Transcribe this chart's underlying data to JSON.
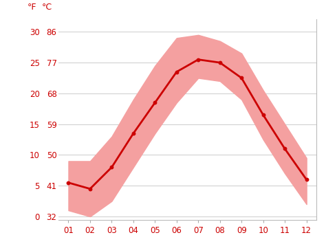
{
  "months": [
    1,
    2,
    3,
    4,
    5,
    6,
    7,
    8,
    9,
    10,
    11,
    12
  ],
  "month_labels": [
    "01",
    "02",
    "03",
    "04",
    "05",
    "06",
    "07",
    "08",
    "09",
    "10",
    "11",
    "12"
  ],
  "avg_temp_c": [
    5.5,
    4.5,
    8.0,
    13.5,
    18.5,
    23.5,
    25.5,
    25.0,
    22.5,
    16.5,
    11.0,
    6.0
  ],
  "temp_high_c": [
    9.0,
    9.0,
    13.0,
    19.0,
    24.5,
    29.0,
    29.5,
    28.5,
    26.5,
    20.5,
    15.0,
    9.5
  ],
  "temp_low_c": [
    1.0,
    0.0,
    2.5,
    8.0,
    13.5,
    18.5,
    22.5,
    22.0,
    19.0,
    12.5,
    7.0,
    2.0
  ],
  "yticks_c": [
    0,
    5,
    10,
    15,
    20,
    25,
    30
  ],
  "yticks_f": [
    32,
    41,
    50,
    59,
    68,
    77,
    86
  ],
  "ylim_c": [
    -0.5,
    32
  ],
  "xlim": [
    0.55,
    12.45
  ],
  "line_color": "#cc0000",
  "band_color": "#f4a0a0",
  "axis_color": "#cc0000",
  "grid_color": "#cccccc",
  "background_color": "#ffffff",
  "tick_fs": 8.5,
  "label_fs": 9
}
